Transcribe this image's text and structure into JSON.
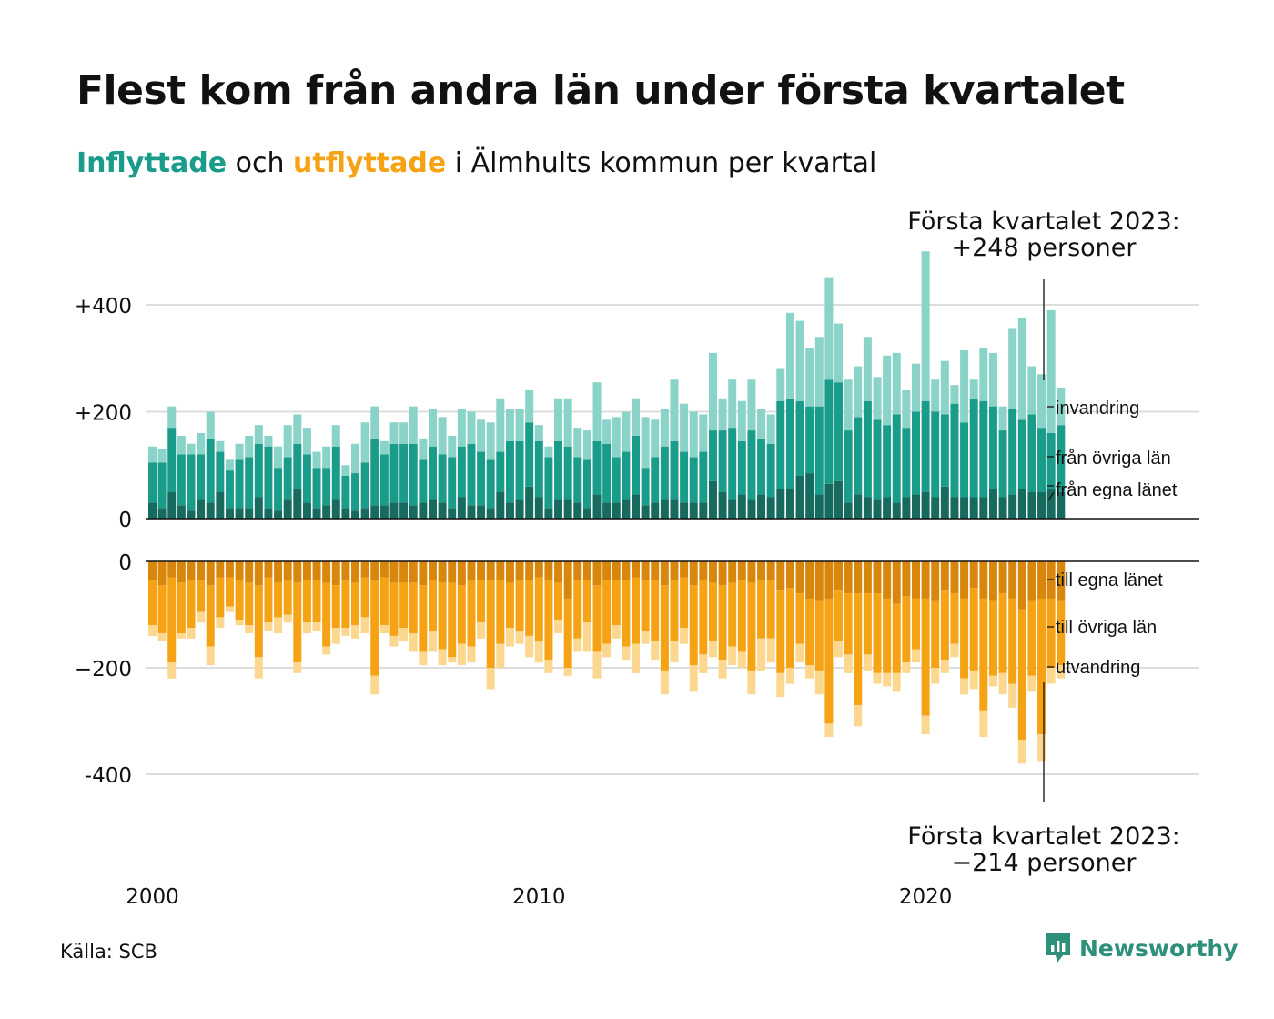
{
  "title": "Flest kom från andra län under första kvartalet",
  "subtitle": {
    "in_word": "Inflyttade",
    "mid": " och ",
    "out_word": "utflyttade",
    "rest": " i Älmhults kommun per kvartal"
  },
  "source": "Källa: SCB",
  "logo": "Newsworthy",
  "colors": {
    "in_dark": "#166a5e",
    "in_mid": "#1a9c8a",
    "in_light": "#8ad3c8",
    "out_dark": "#d9870c",
    "out_mid": "#f5a214",
    "out_light": "#fbd78f",
    "title_in": "#1a9c8a",
    "title_out": "#f5a214",
    "grid": "#dddddd"
  },
  "chart_data": {
    "type": "bar",
    "stacked": true,
    "x_start": "2000 Q1",
    "x_end": "2023 Q1",
    "x_tick_labels": [
      "2000",
      "2010",
      "2020"
    ],
    "x_tick_years": [
      2000,
      2010,
      2020
    ],
    "panels": {
      "in": {
        "ylim": [
          0,
          450
        ],
        "yticks": [
          0,
          200,
          400
        ],
        "ytick_labels": [
          "0",
          "+200",
          "+400"
        ]
      },
      "out": {
        "ylim": [
          -450,
          0
        ],
        "yticks": [
          0,
          -200,
          -400
        ],
        "ytick_labels": [
          "0",
          "−200",
          "-400"
        ]
      }
    },
    "series_in": [
      {
        "name": "från egna länet",
        "values": [
          30,
          20,
          50,
          25,
          15,
          35,
          30,
          50,
          20,
          20,
          20,
          40,
          20,
          15,
          35,
          55,
          30,
          20,
          25,
          35,
          20,
          15,
          20,
          25,
          25,
          30,
          30,
          25,
          30,
          35,
          30,
          20,
          40,
          25,
          25,
          20,
          50,
          30,
          35,
          60,
          40,
          20,
          35,
          35,
          30,
          20,
          45,
          30,
          30,
          35,
          45,
          25,
          30,
          35,
          35,
          30,
          30,
          30,
          70,
          50,
          35,
          45,
          35,
          45,
          40,
          55,
          55,
          80,
          85,
          45,
          65,
          70,
          30,
          45,
          40,
          35,
          40,
          30,
          40,
          45,
          50,
          40,
          60,
          40,
          40,
          40,
          40,
          55,
          40,
          45,
          55,
          50,
          50,
          55,
          50
        ]
      },
      {
        "name": "från övriga län",
        "values": [
          75,
          85,
          120,
          95,
          105,
          85,
          120,
          75,
          70,
          90,
          95,
          100,
          115,
          80,
          80,
          85,
          90,
          75,
          70,
          100,
          60,
          70,
          85,
          125,
          95,
          110,
          110,
          115,
          80,
          100,
          90,
          95,
          95,
          115,
          100,
          90,
          75,
          115,
          110,
          120,
          105,
          95,
          110,
          100,
          85,
          90,
          100,
          110,
          85,
          90,
          110,
          70,
          85,
          100,
          110,
          95,
          85,
          95,
          95,
          115,
          135,
          100,
          130,
          105,
          100,
          165,
          170,
          140,
          125,
          165,
          195,
          185,
          135,
          145,
          180,
          150,
          135,
          165,
          130,
          155,
          170,
          160,
          135,
          175,
          140,
          185,
          180,
          155,
          125,
          160,
          130,
          145,
          120,
          105,
          125
        ]
      },
      {
        "name": "invandring",
        "values": [
          30,
          25,
          40,
          35,
          20,
          40,
          50,
          20,
          20,
          30,
          40,
          35,
          20,
          40,
          60,
          55,
          50,
          30,
          40,
          40,
          20,
          55,
          75,
          60,
          25,
          40,
          40,
          70,
          40,
          70,
          70,
          40,
          70,
          60,
          60,
          70,
          100,
          60,
          60,
          60,
          30,
          20,
          80,
          90,
          55,
          55,
          110,
          45,
          75,
          75,
          70,
          95,
          70,
          70,
          115,
          90,
          85,
          70,
          145,
          60,
          90,
          75,
          95,
          55,
          55,
          60,
          160,
          150,
          110,
          130,
          190,
          110,
          95,
          95,
          120,
          80,
          130,
          115,
          70,
          90,
          280,
          60,
          100,
          35,
          135,
          35,
          100,
          100,
          45,
          150,
          190,
          90,
          100,
          230,
          70
        ]
      }
    ],
    "series_out": [
      {
        "name": "till egna länet",
        "values": [
          -35,
          -45,
          -30,
          -40,
          -35,
          -35,
          -45,
          -30,
          -30,
          -35,
          -40,
          -45,
          -30,
          -40,
          -35,
          -40,
          -35,
          -35,
          -40,
          -45,
          -35,
          -40,
          -30,
          -35,
          -30,
          -40,
          -40,
          -40,
          -45,
          -35,
          -40,
          -40,
          -45,
          -35,
          -35,
          -35,
          -35,
          -40,
          -35,
          -35,
          -30,
          -35,
          -40,
          -70,
          -35,
          -35,
          -45,
          -35,
          -35,
          -35,
          -30,
          -35,
          -35,
          -45,
          -35,
          -30,
          -45,
          -35,
          -40,
          -45,
          -40,
          -35,
          -40,
          -35,
          -35,
          -55,
          -50,
          -60,
          -70,
          -75,
          -70,
          -55,
          -60,
          -60,
          -60,
          -60,
          -70,
          -80,
          -65,
          -70,
          -70,
          -75,
          -55,
          -60,
          -70,
          -50,
          -70,
          -75,
          -60,
          -70,
          -90,
          -75,
          -70,
          -70,
          -75
        ]
      },
      {
        "name": "till övriga län",
        "values": [
          -85,
          -90,
          -160,
          -95,
          -90,
          -60,
          -115,
          -75,
          -55,
          -75,
          -80,
          -135,
          -85,
          -65,
          -65,
          -150,
          -80,
          -80,
          -120,
          -80,
          -90,
          -80,
          -75,
          -180,
          -90,
          -100,
          -85,
          -95,
          -125,
          -95,
          -125,
          -140,
          -110,
          -125,
          -80,
          -165,
          -120,
          -85,
          -95,
          -105,
          -120,
          -150,
          -70,
          -130,
          -110,
          -80,
          -125,
          -120,
          -85,
          -125,
          -125,
          -95,
          -115,
          -160,
          -115,
          -95,
          -150,
          -140,
          -110,
          -140,
          -120,
          -135,
          -165,
          -110,
          -110,
          -155,
          -150,
          -95,
          -125,
          -130,
          -235,
          -95,
          -115,
          -210,
          -115,
          -150,
          -140,
          -130,
          -125,
          -95,
          -220,
          -125,
          -130,
          -95,
          -150,
          -155,
          -210,
          -140,
          -150,
          -160,
          -245,
          -140,
          -255,
          -130,
          -120
        ]
      },
      {
        "name": "utvandring",
        "values": [
          -20,
          -15,
          -30,
          -10,
          -20,
          -20,
          -35,
          -20,
          -10,
          -10,
          -15,
          -40,
          -15,
          -30,
          -15,
          -20,
          -20,
          -15,
          -15,
          -30,
          -15,
          -25,
          -30,
          -35,
          -15,
          -20,
          -25,
          -35,
          -25,
          -40,
          -30,
          -10,
          -40,
          -30,
          -30,
          -40,
          -45,
          -35,
          -25,
          -40,
          -40,
          -25,
          -25,
          -15,
          -25,
          -55,
          -50,
          -25,
          -25,
          -25,
          -55,
          -25,
          -35,
          -45,
          -40,
          -30,
          -50,
          -35,
          -30,
          -35,
          -35,
          -30,
          -45,
          -60,
          -45,
          -45,
          -30,
          -35,
          -25,
          -45,
          -25,
          -30,
          -35,
          -40,
          -30,
          -20,
          -25,
          -35,
          -20,
          -25,
          -35,
          -30,
          -25,
          -25,
          -30,
          -35,
          -50,
          -20,
          -40,
          -45,
          -45,
          -30,
          -50,
          -30,
          -25
        ]
      }
    ],
    "legend_in": [
      "invandring",
      "från övriga län",
      "från egna länet"
    ],
    "legend_out": [
      "till egna länet",
      "till övriga län",
      "utvandring"
    ],
    "annotation_in": {
      "line1": "Första kvartalet 2023:",
      "line2": "+248 personer",
      "value": 248
    },
    "annotation_out": {
      "line1": "Första kvartalet 2023:",
      "line2": "−214 personer",
      "value": -214
    }
  }
}
